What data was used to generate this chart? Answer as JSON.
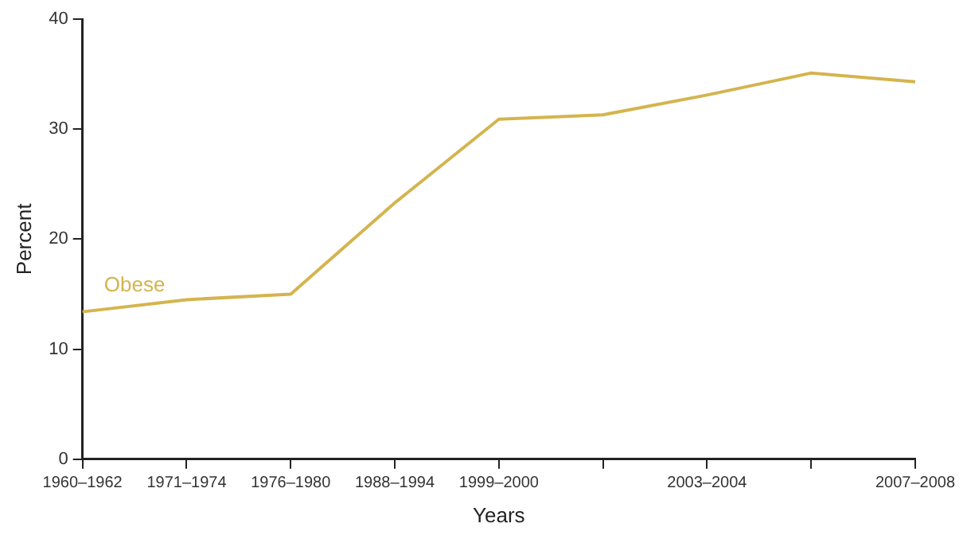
{
  "chart_data": {
    "type": "line",
    "xlabel": "Years",
    "ylabel": "Percent",
    "categories": [
      "1960–1962",
      "1971–1974",
      "1976–1980",
      "1988–1994",
      "1999–2000",
      null,
      "2003–2004",
      null,
      "2007–2008"
    ],
    "series": [
      {
        "name": "Obese",
        "color": "#d4b44e",
        "values": [
          13.4,
          14.5,
          15.0,
          23.3,
          30.9,
          31.3,
          33.1,
          35.1,
          34.3
        ]
      }
    ],
    "ylim": [
      0,
      40
    ],
    "yticks": [
      0,
      10,
      20,
      30,
      40
    ],
    "grid": false,
    "legend": false,
    "marker": "none",
    "line_style": "solid"
  }
}
